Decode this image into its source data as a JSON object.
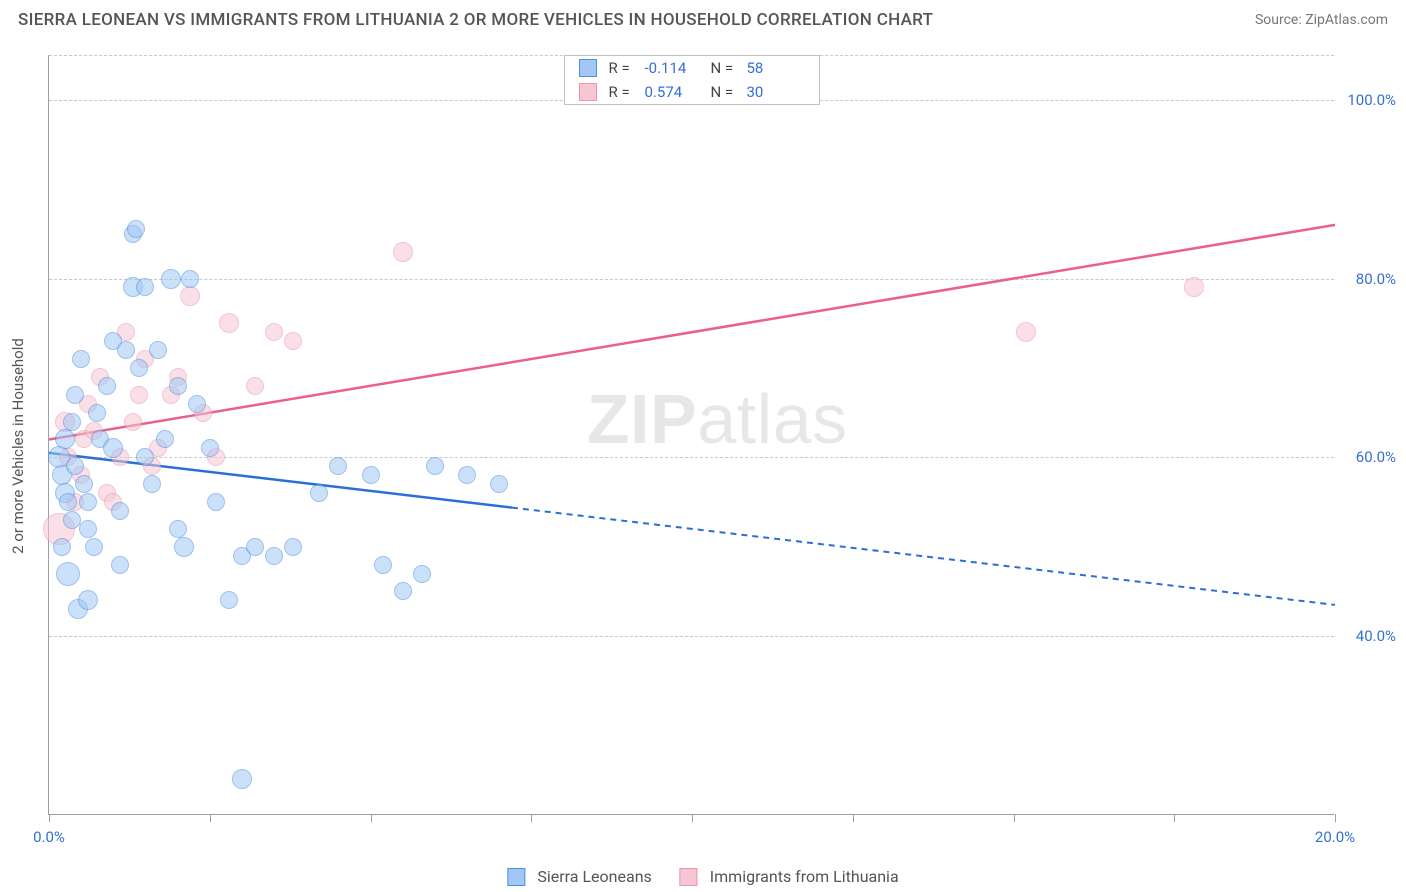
{
  "header": {
    "title": "SIERRA LEONEAN VS IMMIGRANTS FROM LITHUANIA 2 OR MORE VEHICLES IN HOUSEHOLD CORRELATION CHART",
    "source_label": "Source: ZipAtlas.com"
  },
  "axes": {
    "y_title": "2 or more Vehicles in Household",
    "x_range": [
      0,
      20
    ],
    "y_range": [
      20,
      105
    ],
    "y_ticks": [
      40.0,
      60.0,
      80.0,
      100.0
    ],
    "y_tick_labels": [
      "40.0%",
      "60.0%",
      "80.0%",
      "100.0%"
    ],
    "x_ticks": [
      0,
      2.5,
      5,
      7.5,
      10,
      12.5,
      15,
      17.5,
      20
    ],
    "x_tick_labels": {
      "0": "0.0%",
      "20": "20.0%"
    },
    "grid_color": "#c7c9cc",
    "axis_color": "#9aa0a6",
    "label_color": "#356fd6",
    "tick_fontsize": 15
  },
  "r_legend": {
    "rows": [
      {
        "swatch": "blue",
        "labels": [
          "R =",
          "-0.114",
          "N =",
          "58"
        ]
      },
      {
        "swatch": "pink",
        "labels": [
          "R =",
          "0.574",
          "N =",
          "30"
        ]
      }
    ]
  },
  "bottom_legend": {
    "items": [
      {
        "swatch": "blue",
        "label": "Sierra Leoneans"
      },
      {
        "swatch": "pink",
        "label": "Immigrants from Lithuania"
      }
    ]
  },
  "watermark": {
    "bold": "ZIP",
    "light": "atlas"
  },
  "series": {
    "blue": {
      "color_fill": "#a2c7f5",
      "color_stroke": "#4e8fde",
      "default_radius": 9,
      "points": [
        {
          "x": 0.15,
          "y": 60,
          "r": 11
        },
        {
          "x": 0.2,
          "y": 58,
          "r": 10
        },
        {
          "x": 0.25,
          "y": 56,
          "r": 10
        },
        {
          "x": 0.25,
          "y": 62,
          "r": 10
        },
        {
          "x": 0.3,
          "y": 47,
          "r": 12
        },
        {
          "x": 0.3,
          "y": 55,
          "r": 9
        },
        {
          "x": 0.35,
          "y": 53,
          "r": 9
        },
        {
          "x": 0.35,
          "y": 64,
          "r": 9
        },
        {
          "x": 0.4,
          "y": 59,
          "r": 9
        },
        {
          "x": 0.4,
          "y": 67,
          "r": 9
        },
        {
          "x": 0.45,
          "y": 43,
          "r": 10
        },
        {
          "x": 0.5,
          "y": 71,
          "r": 9
        },
        {
          "x": 0.55,
          "y": 57,
          "r": 9
        },
        {
          "x": 0.6,
          "y": 55,
          "r": 9
        },
        {
          "x": 0.6,
          "y": 52,
          "r": 9
        },
        {
          "x": 0.7,
          "y": 50,
          "r": 9
        },
        {
          "x": 0.75,
          "y": 65,
          "r": 9
        },
        {
          "x": 0.8,
          "y": 62,
          "r": 9
        },
        {
          "x": 0.9,
          "y": 68,
          "r": 9
        },
        {
          "x": 1.0,
          "y": 61,
          "r": 10
        },
        {
          "x": 1.0,
          "y": 73,
          "r": 9
        },
        {
          "x": 1.1,
          "y": 54,
          "r": 9
        },
        {
          "x": 1.1,
          "y": 48,
          "r": 9
        },
        {
          "x": 1.2,
          "y": 72,
          "r": 9
        },
        {
          "x": 1.3,
          "y": 79,
          "r": 10
        },
        {
          "x": 1.3,
          "y": 85,
          "r": 9
        },
        {
          "x": 1.35,
          "y": 85.5,
          "r": 9
        },
        {
          "x": 1.4,
          "y": 70,
          "r": 9
        },
        {
          "x": 1.5,
          "y": 60,
          "r": 9
        },
        {
          "x": 1.5,
          "y": 79,
          "r": 9
        },
        {
          "x": 1.6,
          "y": 57,
          "r": 9
        },
        {
          "x": 1.7,
          "y": 72,
          "r": 9
        },
        {
          "x": 1.8,
          "y": 62,
          "r": 9
        },
        {
          "x": 1.9,
          "y": 80,
          "r": 10
        },
        {
          "x": 2.0,
          "y": 68,
          "r": 9
        },
        {
          "x": 2.0,
          "y": 52,
          "r": 9
        },
        {
          "x": 2.1,
          "y": 50,
          "r": 10
        },
        {
          "x": 2.2,
          "y": 80,
          "r": 9
        },
        {
          "x": 2.3,
          "y": 66,
          "r": 9
        },
        {
          "x": 2.5,
          "y": 61,
          "r": 9
        },
        {
          "x": 2.6,
          "y": 55,
          "r": 9
        },
        {
          "x": 2.8,
          "y": 44,
          "r": 9
        },
        {
          "x": 3.0,
          "y": 49,
          "r": 9
        },
        {
          "x": 3.0,
          "y": 24,
          "r": 10
        },
        {
          "x": 3.2,
          "y": 50,
          "r": 9
        },
        {
          "x": 3.5,
          "y": 49,
          "r": 9
        },
        {
          "x": 3.8,
          "y": 50,
          "r": 9
        },
        {
          "x": 4.2,
          "y": 56,
          "r": 9
        },
        {
          "x": 4.5,
          "y": 59,
          "r": 9
        },
        {
          "x": 5.0,
          "y": 58,
          "r": 9
        },
        {
          "x": 5.2,
          "y": 48,
          "r": 9
        },
        {
          "x": 5.5,
          "y": 45,
          "r": 9
        },
        {
          "x": 5.8,
          "y": 47,
          "r": 9
        },
        {
          "x": 6.0,
          "y": 59,
          "r": 9
        },
        {
          "x": 6.5,
          "y": 58,
          "r": 9
        },
        {
          "x": 7.0,
          "y": 57,
          "r": 9
        },
        {
          "x": 0.6,
          "y": 44,
          "r": 10
        },
        {
          "x": 0.2,
          "y": 50,
          "r": 9
        }
      ],
      "trend": {
        "x1": 0,
        "y1": 60.5,
        "x2": 20,
        "y2": 43.5,
        "solid_until_x": 7.2,
        "color": "#2a6fd6",
        "width": 2.5,
        "dash": "6,5"
      }
    },
    "pink": {
      "color_fill": "#f7c6d2",
      "color_stroke": "#ea95ad",
      "default_radius": 9,
      "points": [
        {
          "x": 0.15,
          "y": 52,
          "r": 16
        },
        {
          "x": 0.25,
          "y": 64,
          "r": 10
        },
        {
          "x": 0.3,
          "y": 60,
          "r": 9
        },
        {
          "x": 0.4,
          "y": 55,
          "r": 9
        },
        {
          "x": 0.5,
          "y": 58,
          "r": 9
        },
        {
          "x": 0.55,
          "y": 62,
          "r": 9
        },
        {
          "x": 0.6,
          "y": 66,
          "r": 9
        },
        {
          "x": 0.7,
          "y": 63,
          "r": 9
        },
        {
          "x": 0.8,
          "y": 69,
          "r": 9
        },
        {
          "x": 0.9,
          "y": 56,
          "r": 9
        },
        {
          "x": 1.0,
          "y": 55,
          "r": 9
        },
        {
          "x": 1.1,
          "y": 60,
          "r": 9
        },
        {
          "x": 1.2,
          "y": 74,
          "r": 9
        },
        {
          "x": 1.3,
          "y": 64,
          "r": 9
        },
        {
          "x": 1.4,
          "y": 67,
          "r": 9
        },
        {
          "x": 1.5,
          "y": 71,
          "r": 9
        },
        {
          "x": 1.6,
          "y": 59,
          "r": 9
        },
        {
          "x": 1.7,
          "y": 61,
          "r": 9
        },
        {
          "x": 1.9,
          "y": 67,
          "r": 9
        },
        {
          "x": 2.0,
          "y": 69,
          "r": 9
        },
        {
          "x": 2.2,
          "y": 78,
          "r": 10
        },
        {
          "x": 2.4,
          "y": 65,
          "r": 9
        },
        {
          "x": 2.6,
          "y": 60,
          "r": 9
        },
        {
          "x": 2.8,
          "y": 75,
          "r": 10
        },
        {
          "x": 3.2,
          "y": 68,
          "r": 9
        },
        {
          "x": 3.5,
          "y": 74,
          "r": 9
        },
        {
          "x": 3.8,
          "y": 73,
          "r": 9
        },
        {
          "x": 5.5,
          "y": 83,
          "r": 10
        },
        {
          "x": 15.2,
          "y": 74,
          "r": 10
        },
        {
          "x": 17.8,
          "y": 79,
          "r": 10
        }
      ],
      "trend": {
        "x1": 0,
        "y1": 62,
        "x2": 20,
        "y2": 86,
        "color": "#e96189",
        "width": 2.5
      }
    }
  }
}
